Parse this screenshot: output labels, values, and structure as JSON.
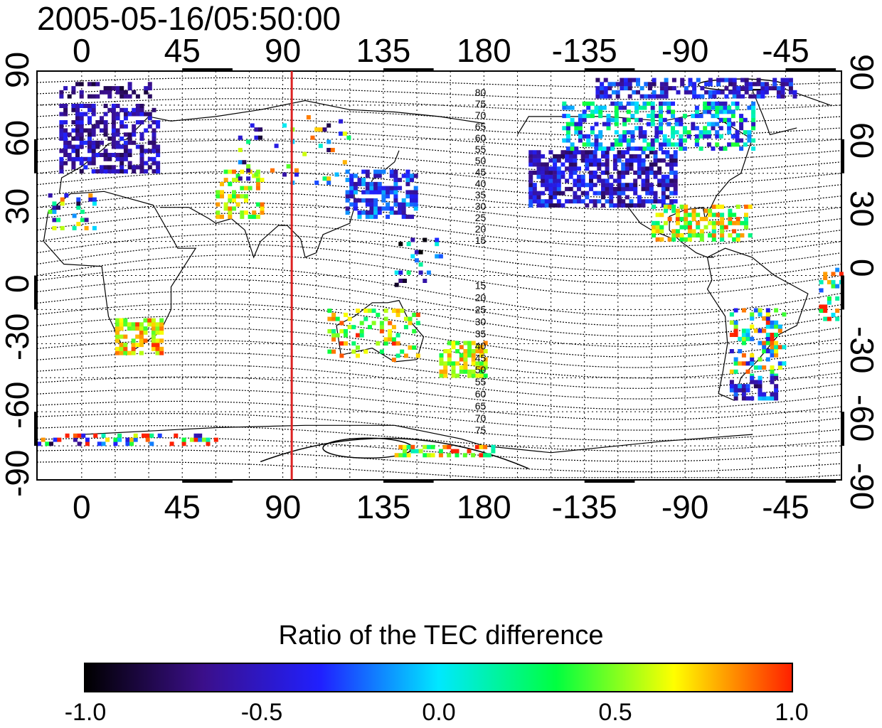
{
  "title": "2005-05-16/05:50:00",
  "x_ticks": [
    "0",
    "45",
    "90",
    "135",
    "180",
    "-135",
    "-90",
    "-45"
  ],
  "y_ticks": [
    "90",
    "60",
    "30",
    "0",
    "-30",
    "-60",
    "-90"
  ],
  "contour_labels_north": [
    "80",
    "75",
    "70",
    "65",
    "60",
    "55",
    "50",
    "45",
    "40",
    "35",
    "30",
    "25",
    "20",
    "15"
  ],
  "contour_labels_south": [
    "15",
    "20",
    "25",
    "30",
    "35",
    "40",
    "45",
    "50",
    "55",
    "60",
    "65",
    "70",
    "75"
  ],
  "colorbar": {
    "title": "Ratio of the TEC difference",
    "labels": [
      "-1.0",
      "-0.5",
      "0.0",
      "0.5",
      "1.0"
    ],
    "range": [
      -1.0,
      1.0
    ]
  },
  "map": {
    "projection": "cylindrical",
    "longitude_range": [
      -20,
      340
    ],
    "latitude_range": [
      -90,
      90
    ],
    "grid": true,
    "marker_longitude": 94,
    "marker_color": "#dd2222"
  },
  "colors": {
    "colormap": [
      "#000000",
      "#3b0f8a",
      "#2020ff",
      "#00e8ff",
      "#00ff40",
      "#ffff00",
      "#ff2000"
    ]
  }
}
